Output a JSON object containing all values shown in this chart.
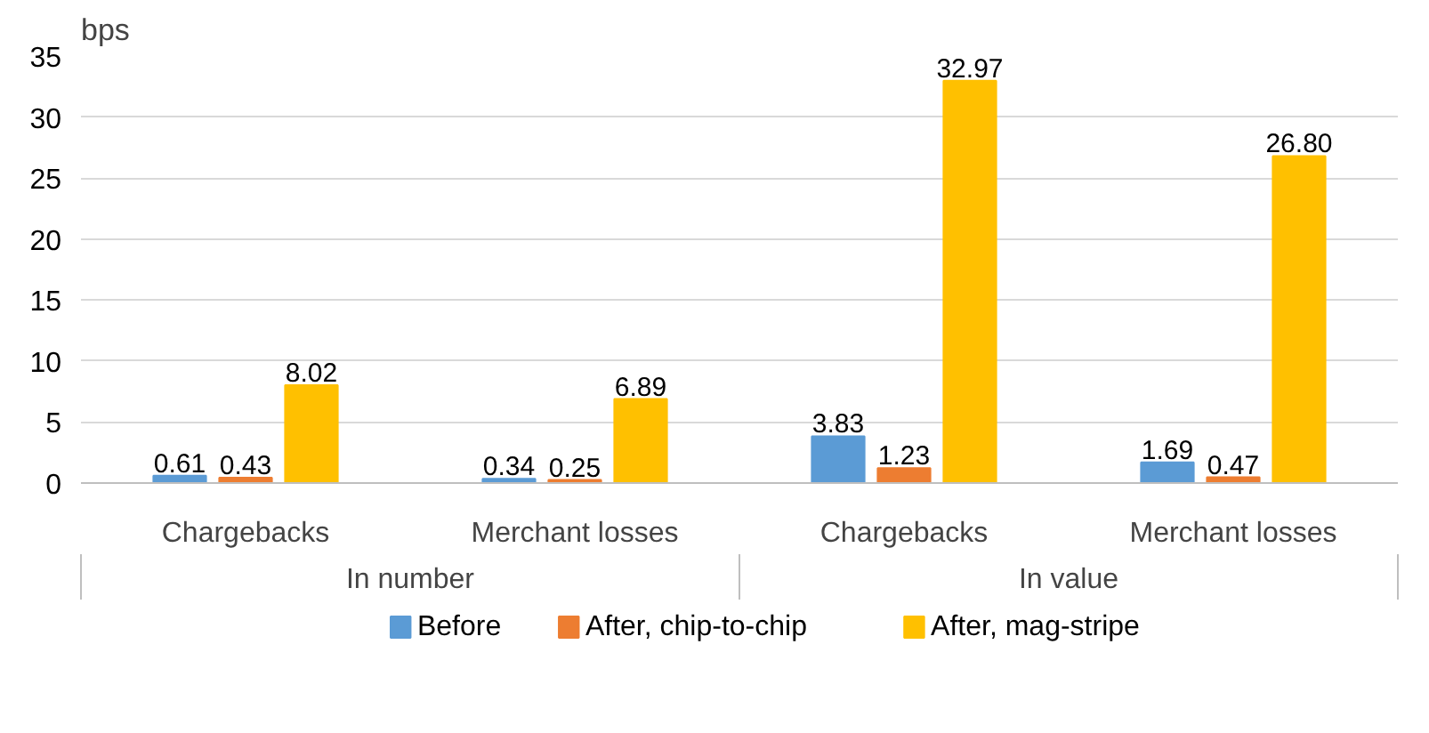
{
  "chart_data": {
    "type": "bar",
    "ylabel": "bps",
    "categories": [
      "Chargebacks",
      "Merchant losses",
      "Chargebacks",
      "Merchant losses"
    ],
    "annotations": [
      "In number",
      "In value"
    ],
    "series": [
      {
        "name": "Before",
        "color": "#5b9bd5",
        "values": [
          0.61,
          0.34,
          3.83,
          1.69
        ],
        "value_labels": [
          "0.61",
          "0.34",
          "3.83",
          "1.69"
        ]
      },
      {
        "name": "After, chip-to-chip",
        "color": "#ed7d31",
        "values": [
          0.43,
          0.25,
          1.23,
          0.47
        ],
        "value_labels": [
          "0.43",
          "0.25",
          "1.23",
          "0.47"
        ]
      },
      {
        "name": "After, mag-stripe",
        "color": "#ffc000",
        "values": [
          8.02,
          6.89,
          32.97,
          26.8
        ],
        "value_labels": [
          "8.02",
          "6.89",
          "32.97",
          "26.80"
        ]
      }
    ],
    "ylim": [
      0,
      35
    ],
    "yticks": [
      0,
      5,
      10,
      15,
      20,
      25,
      30,
      35
    ],
    "grid": "y",
    "legend": "bottom"
  }
}
